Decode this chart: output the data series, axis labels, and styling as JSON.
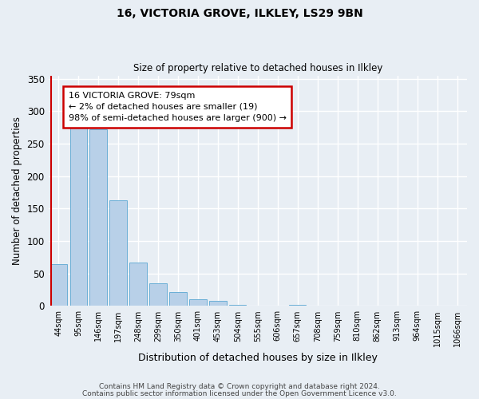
{
  "title": "16, VICTORIA GROVE, ILKLEY, LS29 9BN",
  "subtitle": "Size of property relative to detached houses in Ilkley",
  "xlabel": "Distribution of detached houses by size in Ilkley",
  "ylabel": "Number of detached properties",
  "bar_labels": [
    "44sqm",
    "95sqm",
    "146sqm",
    "197sqm",
    "248sqm",
    "299sqm",
    "350sqm",
    "401sqm",
    "453sqm",
    "504sqm",
    "555sqm",
    "606sqm",
    "657sqm",
    "708sqm",
    "759sqm",
    "810sqm",
    "862sqm",
    "913sqm",
    "964sqm",
    "1015sqm",
    "1066sqm"
  ],
  "bar_values": [
    65,
    282,
    272,
    163,
    67,
    35,
    21,
    10,
    8,
    2,
    1,
    0,
    2,
    0,
    1,
    0,
    0,
    0,
    1,
    0,
    1
  ],
  "bar_color": "#b8d0e8",
  "bar_edgecolor": "#6aaed6",
  "vline_color": "#cc0000",
  "annotation_text": "16 VICTORIA GROVE: 79sqm\n← 2% of detached houses are smaller (19)\n98% of semi-detached houses are larger (900) →",
  "annotation_box_color": "#cc0000",
  "ylim": [
    0,
    355
  ],
  "yticks": [
    0,
    50,
    100,
    150,
    200,
    250,
    300,
    350
  ],
  "footer1": "Contains HM Land Registry data © Crown copyright and database right 2024.",
  "footer2": "Contains public sector information licensed under the Open Government Licence v3.0.",
  "bg_color": "#e8eef4",
  "grid_color": "#ffffff"
}
